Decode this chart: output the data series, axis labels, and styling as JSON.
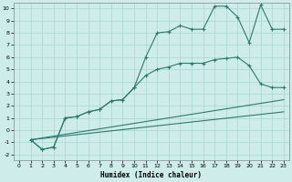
{
  "background_color": "#ceecea",
  "grid_color": "#aed8d4",
  "line_color": "#2d7a6e",
  "xlabel": "Humidex (Indice chaleur)",
  "xlim": [
    -0.5,
    23.5
  ],
  "ylim": [
    -2.5,
    10.5
  ],
  "xticks": [
    0,
    1,
    2,
    3,
    4,
    5,
    6,
    7,
    8,
    9,
    10,
    11,
    12,
    13,
    14,
    15,
    16,
    17,
    18,
    19,
    20,
    21,
    22,
    23
  ],
  "yticks": [
    -2,
    -1,
    0,
    1,
    2,
    3,
    4,
    5,
    6,
    7,
    8,
    9,
    10
  ],
  "line1_x": [
    1,
    2,
    3,
    4,
    5,
    6,
    7,
    8,
    9,
    10,
    11,
    12,
    13,
    14,
    15,
    16,
    17,
    18,
    19,
    20,
    21,
    22,
    23
  ],
  "line1_y": [
    -0.8,
    -1.6,
    -1.4,
    1.0,
    1.1,
    1.5,
    1.7,
    2.4,
    2.5,
    3.5,
    6.0,
    8.0,
    8.1,
    8.6,
    8.3,
    8.3,
    10.2,
    10.2,
    9.3,
    7.2,
    10.3,
    8.3,
    8.3
  ],
  "line2_x": [
    1,
    2,
    3,
    4,
    5,
    6,
    7,
    8,
    9,
    10,
    11,
    12,
    13,
    14,
    15,
    16,
    17,
    18,
    19,
    20,
    21,
    22,
    23
  ],
  "line2_y": [
    -0.8,
    -1.6,
    -1.4,
    1.0,
    1.1,
    1.5,
    1.7,
    2.4,
    2.5,
    3.5,
    4.5,
    5.0,
    5.2,
    5.5,
    5.5,
    5.5,
    5.8,
    5.9,
    6.0,
    5.3,
    3.8,
    3.5,
    3.5
  ],
  "line3_x": [
    1,
    23
  ],
  "line3_y": [
    -0.8,
    2.5
  ],
  "line4_x": [
    1,
    23
  ],
  "line4_y": [
    -0.8,
    1.5
  ],
  "marker": "+"
}
